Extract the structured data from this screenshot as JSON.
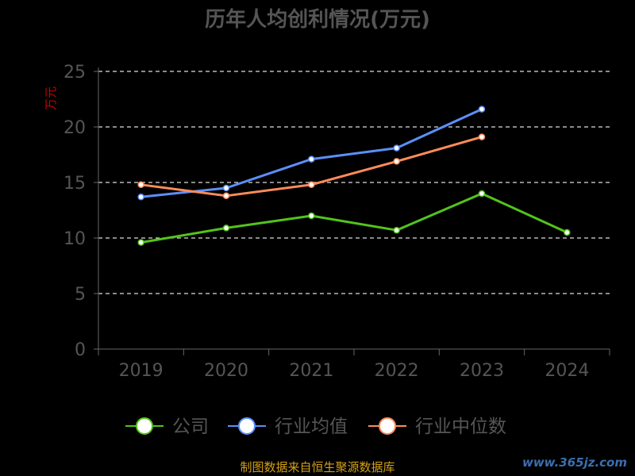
{
  "chart_data": {
    "type": "line",
    "title": "历年人均创利情况(万元)",
    "ylabel": "万元",
    "categories": [
      "2019",
      "2020",
      "2021",
      "2022",
      "2023",
      "2024"
    ],
    "yticks": [
      "0",
      "5",
      "10",
      "15",
      "20",
      "25"
    ],
    "ylim": [
      0,
      25
    ],
    "grid": "horizontal dashed",
    "legend_position": "bottom",
    "series": [
      {
        "name": "公司",
        "color": "#52c41a",
        "values": [
          9.6,
          10.9,
          12.0,
          10.7,
          14.0,
          10.5
        ]
      },
      {
        "name": "行业均值",
        "color": "#5b8ff9",
        "values": [
          13.7,
          14.5,
          17.1,
          18.1,
          21.6,
          null
        ]
      },
      {
        "name": "行业中位数",
        "color": "#ff8c5a",
        "values": [
          14.8,
          13.8,
          14.8,
          16.9,
          19.1,
          null
        ]
      }
    ]
  },
  "footer": {
    "source": "制图数据来自恒生聚源数据库",
    "watermark": "www.365jz.com"
  },
  "colors": {
    "background": "#000000",
    "axis": "#666666",
    "grid": "#dddddd",
    "ylabel": "#cc0000",
    "text": "#555555"
  }
}
